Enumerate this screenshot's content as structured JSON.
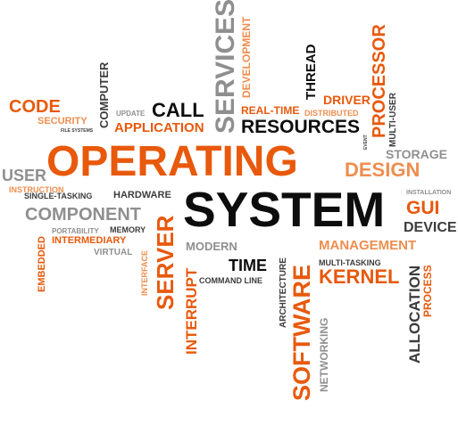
{
  "colors": {
    "orange": "#e8590c",
    "light_orange": "#ee8e4f",
    "black": "#0d0d0d",
    "gray": "#8f8f8f",
    "dark_gray": "#3c3c3c"
  },
  "words": {
    "code": "CODE",
    "security": "SECURITY",
    "file_systems": "FILE SYSTEMS",
    "computer": "COMPUTER",
    "update": "UPDATE",
    "call": "CALL",
    "application": "APPLICATION",
    "services": "SERVICES",
    "development": "DEVELOPMENT",
    "real_time": "REAL-TIME",
    "thread": "THREAD",
    "distributed": "DISTRIBUTED",
    "resources": "RESOURCES",
    "driver": "DRIVER",
    "processor": "PROCESSOR",
    "multi_user": "MULTI-USER",
    "event": "EVENT",
    "storage": "STORAGE",
    "operating": "OPERATING",
    "design": "DESIGN",
    "user": "USER",
    "instruction": "INSTRUCTION",
    "single_tasking": "SINGLE-TASKING",
    "hardware": "HARDWARE",
    "system": "SYSTEM",
    "installation": "INSTALLATION",
    "gui": "GUI",
    "component": "COMPONENT",
    "device": "DEVICE",
    "embedded": "EMBEDDED",
    "portability": "PORTABILITY",
    "memory": "MEMORY",
    "intermediary": "INTERMEDIARY",
    "virtual": "VIRTUAL",
    "server": "SERVER",
    "interface": "INTERFACE",
    "modern": "MODERN",
    "management": "MANAGEMENT",
    "interrupt": "INTERRUPT",
    "time": "TIME",
    "architecture": "ARCHITECTURE",
    "multi_tasking": "MULTI-TASKING",
    "command_line": "COMMAND LINE",
    "kernel": "KERNEL",
    "software": "SOFTWARE",
    "networking": "NETWORKING",
    "allocation": "ALLOCATION",
    "process": "PROCESS"
  }
}
